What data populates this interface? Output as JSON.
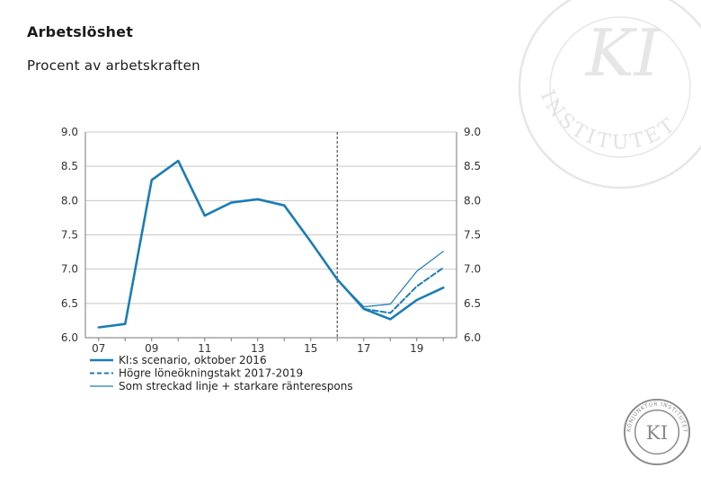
{
  "header": {
    "title": "Arbetslöshet",
    "subtitle": "Procent av arbetskraften"
  },
  "watermark": {
    "ring_text": "INSTITUTET",
    "monogram": "KI"
  },
  "logo": {
    "ring_text": "KONJUNKTUR INSTITUTET",
    "monogram": "KI"
  },
  "colors": {
    "series": "#1b7db3",
    "grid": "#c8c8c8",
    "axis": "#777777",
    "divider": "#555555"
  },
  "chart_data": {
    "type": "line",
    "x_tick_labels": [
      "07",
      "09",
      "11",
      "13",
      "15",
      "17",
      "19"
    ],
    "x_tick_years": [
      2007,
      2009,
      2011,
      2013,
      2015,
      2017,
      2019
    ],
    "y_ticks": [
      6.0,
      6.5,
      7.0,
      7.5,
      8.0,
      8.5,
      9.0
    ],
    "y_tick_labels": [
      "6.0",
      "6.5",
      "7.0",
      "7.5",
      "8.0",
      "8.5",
      "9.0"
    ],
    "ylim": [
      6.0,
      9.0
    ],
    "xlim": [
      2006.5,
      2020.5
    ],
    "forecast_divider_x": 2016.0,
    "grid": true,
    "right_axis": true,
    "legend_position": "bottom-left",
    "series": [
      {
        "name": "KI:s scenario, oktober 2016",
        "style": "solid-thick",
        "x": [
          2007,
          2008,
          2009,
          2010,
          2011,
          2012,
          2013,
          2014,
          2015,
          2016,
          2017,
          2018,
          2019,
          2020
        ],
        "values": [
          6.15,
          6.2,
          8.3,
          8.58,
          7.78,
          7.97,
          8.02,
          7.93,
          7.4,
          6.85,
          6.42,
          6.27,
          6.55,
          6.73
        ]
      },
      {
        "name": "Högre löneökningstakt 2017-2019",
        "style": "dashed",
        "x": [
          2016,
          2017,
          2018,
          2019,
          2020
        ],
        "values": [
          6.85,
          6.42,
          6.36,
          6.75,
          7.02
        ]
      },
      {
        "name": "Som streckad linje + starkare ränterespons",
        "style": "solid-thin",
        "x": [
          2016,
          2017,
          2018,
          2019,
          2020
        ],
        "values": [
          6.85,
          6.45,
          6.49,
          6.97,
          7.26
        ]
      }
    ]
  }
}
